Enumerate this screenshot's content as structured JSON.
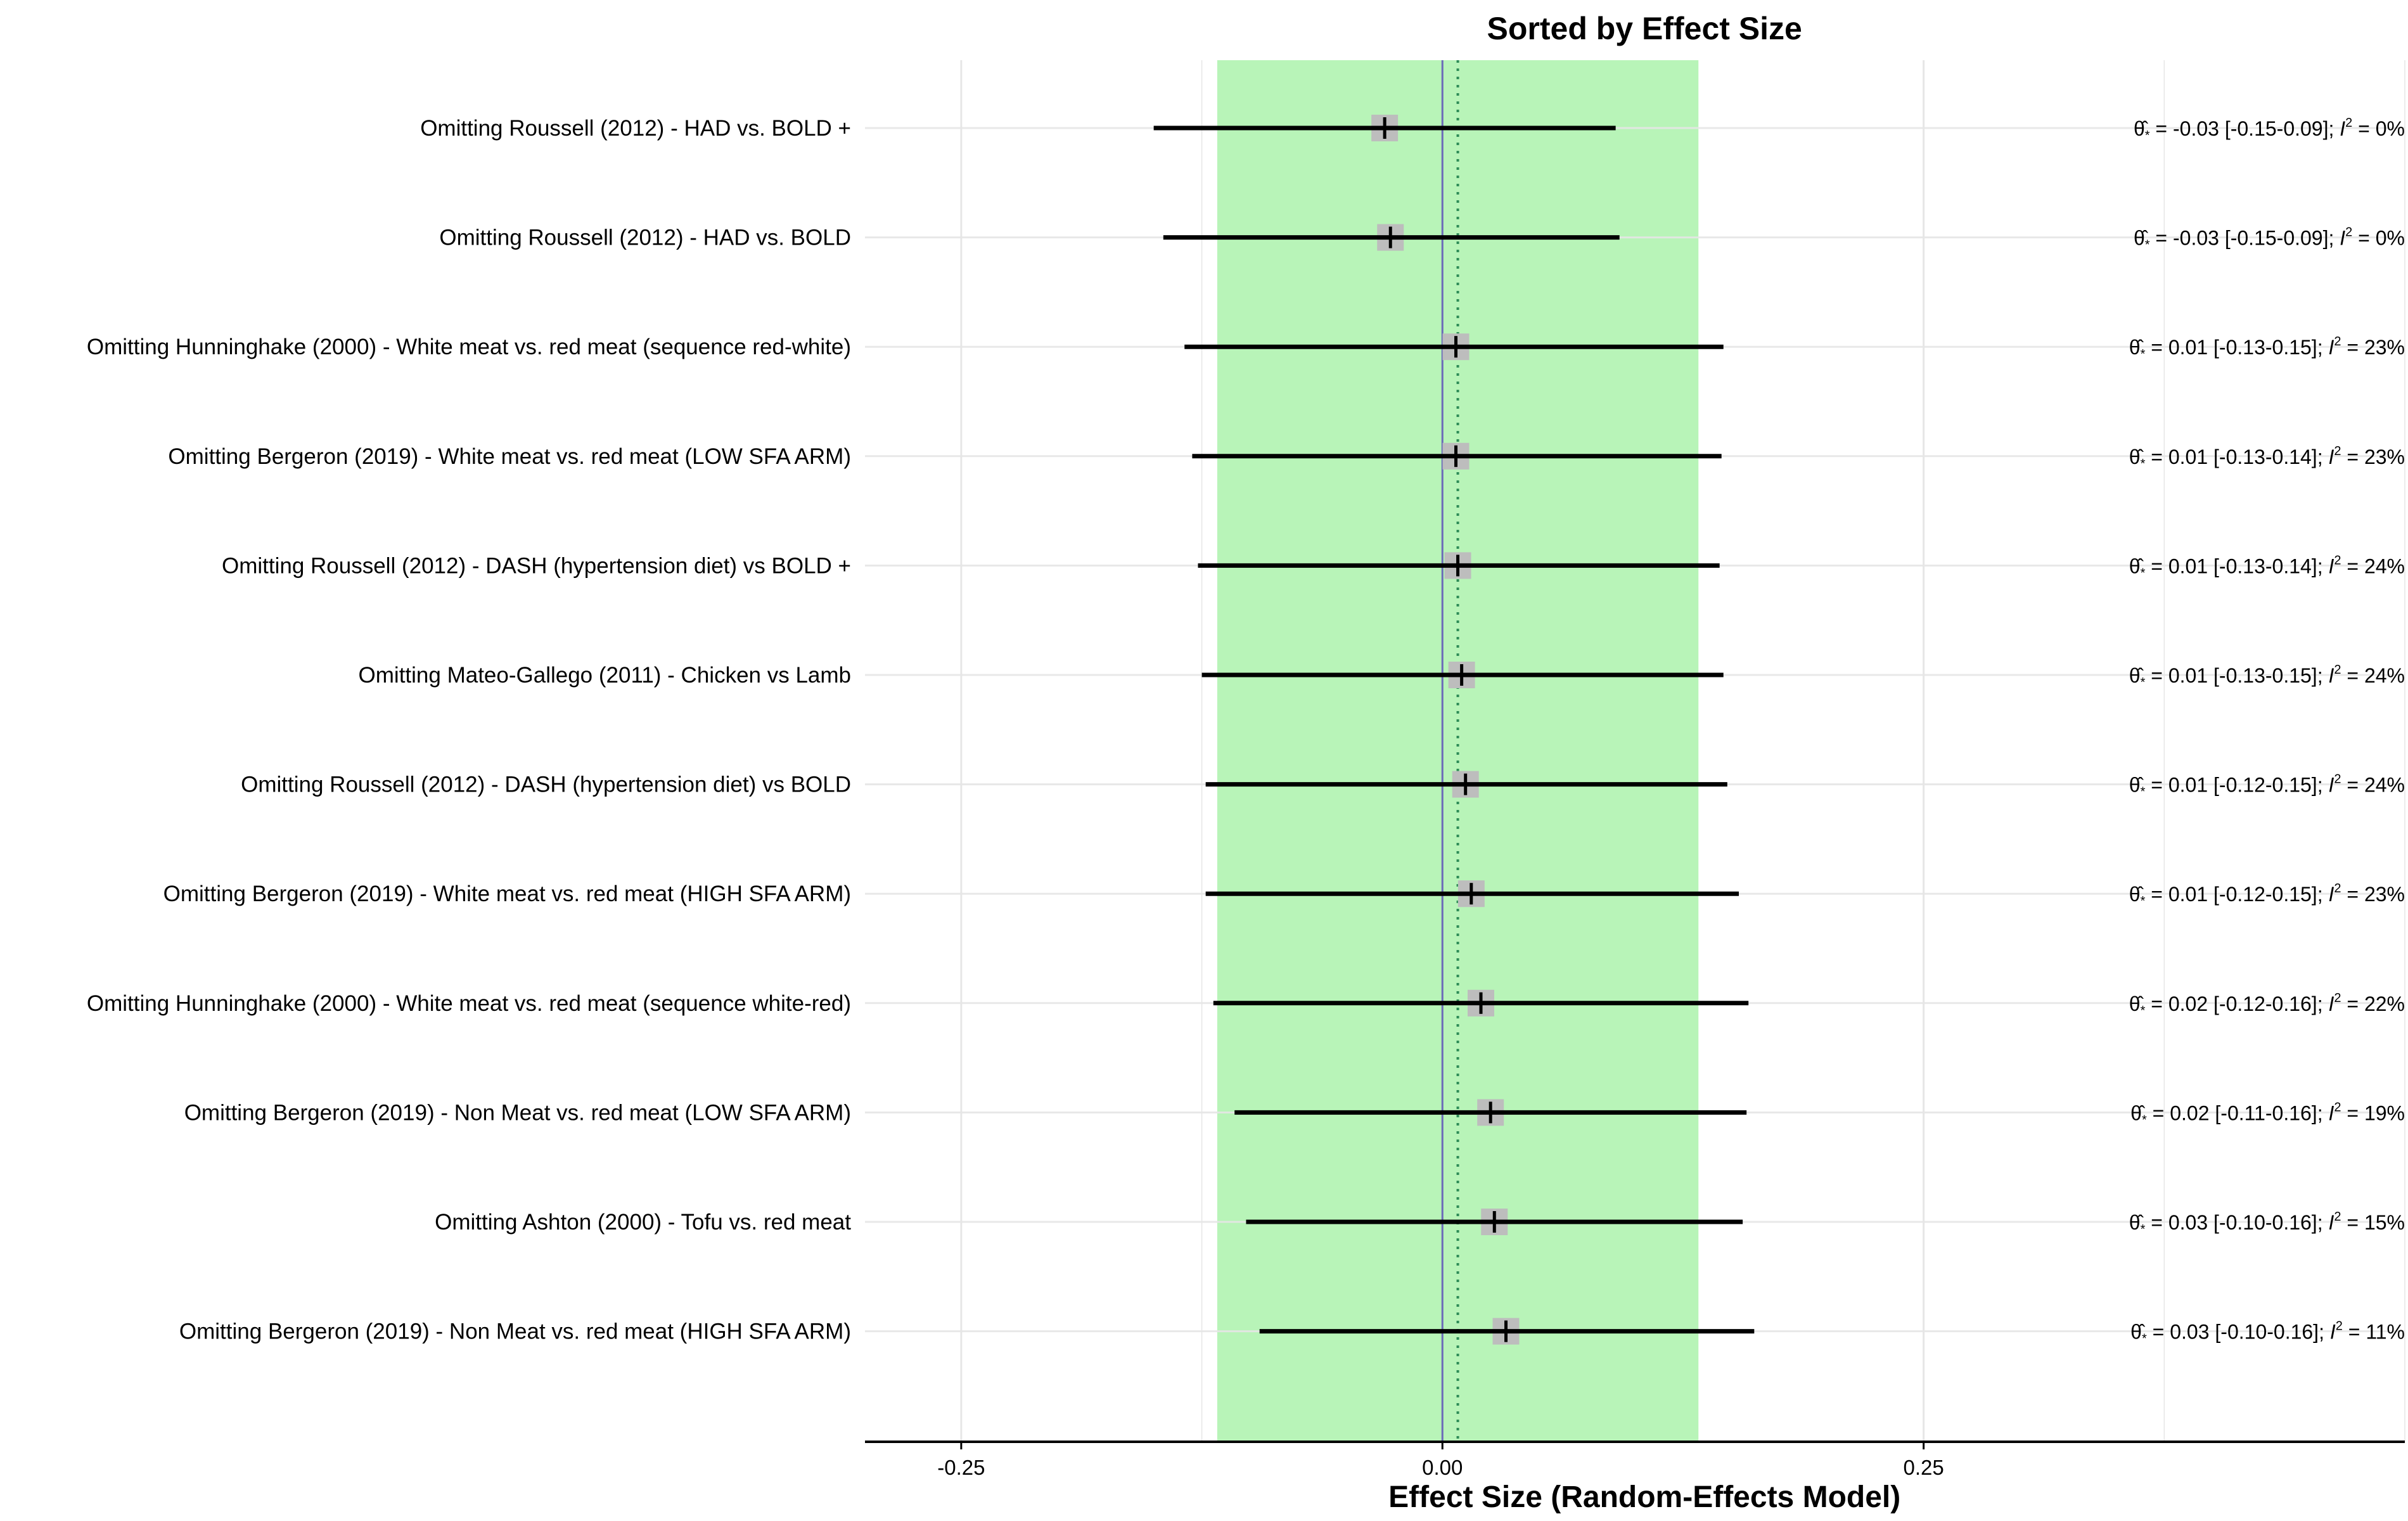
{
  "chart_data": {
    "type": "forest",
    "title": "Sorted by Effect Size",
    "xlabel": "Effect Size (Random-Effects Model)",
    "xlim": [
      -0.3,
      0.5
    ],
    "xticks": [
      -0.25,
      0.0,
      0.25
    ],
    "xtick_labels": [
      "-0.25",
      "0.00",
      "0.25"
    ],
    "pooled_estimate": 0.008,
    "shaded_interval": [
      -0.117,
      0.133
    ],
    "reference_line": 0.0,
    "grid": true,
    "studies": [
      {
        "label": "Omitting Roussell (2012) - HAD vs. BOLD +",
        "estimate": -0.03,
        "lower": -0.15,
        "upper": 0.09,
        "stat": "= -0.03 [-0.15-0.09]; ",
        "i2": "=  0%"
      },
      {
        "label": "Omitting Roussell (2012) - HAD vs. BOLD",
        "estimate": -0.027,
        "lower": -0.145,
        "upper": 0.092,
        "stat": "= -0.03 [-0.15-0.09]; ",
        "i2": "=  0%"
      },
      {
        "label": "Omitting Hunninghake (2000) - White meat vs. red meat (sequence red-white)",
        "estimate": 0.007,
        "lower": -0.134,
        "upper": 0.146,
        "stat": "=  0.01 [-0.13-0.15]; ",
        "i2": "= 23%"
      },
      {
        "label": "Omitting Bergeron (2019) - White meat vs. red meat   (LOW SFA ARM)",
        "estimate": 0.007,
        "lower": -0.13,
        "upper": 0.145,
        "stat": "=  0.01 [-0.13-0.14]; ",
        "i2": "= 23%"
      },
      {
        "label": "Omitting Roussell (2012) - DASH (hypertension diet) vs BOLD +",
        "estimate": 0.008,
        "lower": -0.127,
        "upper": 0.144,
        "stat": "=  0.01 [-0.13-0.14]; ",
        "i2": "= 24%"
      },
      {
        "label": "Omitting Mateo-Gallego (2011) - Chicken vs Lamb",
        "estimate": 0.01,
        "lower": -0.125,
        "upper": 0.146,
        "stat": "=  0.01 [-0.13-0.15]; ",
        "i2": "= 24%"
      },
      {
        "label": "Omitting Roussell (2012) - DASH (hypertension diet) vs BOLD",
        "estimate": 0.012,
        "lower": -0.123,
        "upper": 0.148,
        "stat": "=  0.01 [-0.12-0.15]; ",
        "i2": "= 24%"
      },
      {
        "label": "Omitting Bergeron (2019) - White meat vs. red meat   (HIGH SFA ARM)",
        "estimate": 0.015,
        "lower": -0.123,
        "upper": 0.154,
        "stat": "=  0.01 [-0.12-0.15]; ",
        "i2": "= 23%"
      },
      {
        "label": "Omitting Hunninghake (2000) - White meat vs. red meat (sequence white-red)",
        "estimate": 0.02,
        "lower": -0.119,
        "upper": 0.159,
        "stat": "=  0.02 [-0.12-0.16]; ",
        "i2": "= 22%"
      },
      {
        "label": "Omitting Bergeron (2019) - Non Meat vs. red meat   (LOW SFA ARM)",
        "estimate": 0.025,
        "lower": -0.108,
        "upper": 0.158,
        "stat": "=  0.02 [-0.11-0.16]; ",
        "i2": "= 19%"
      },
      {
        "label": "Omitting Ashton (2000) - Tofu vs. red meat",
        "estimate": 0.027,
        "lower": -0.102,
        "upper": 0.156,
        "stat": "=  0.03 [-0.10-0.16]; ",
        "i2": "= 15%"
      },
      {
        "label": "Omitting Bergeron (2019) - Non Meat vs. red meat   (HIGH SFA ARM)",
        "estimate": 0.033,
        "lower": -0.095,
        "upper": 0.162,
        "stat": "=  0.03 [-0.10-0.16]; ",
        "i2": "= 11%"
      }
    ],
    "colors": {
      "interval_band": "#b8f4b8",
      "reference_line": "#6b6bb8",
      "pooled_line": "#2e8b57",
      "marker_box": "#bdbdbd",
      "ci_line": "#000000",
      "grid": "#e6e6e6"
    }
  }
}
